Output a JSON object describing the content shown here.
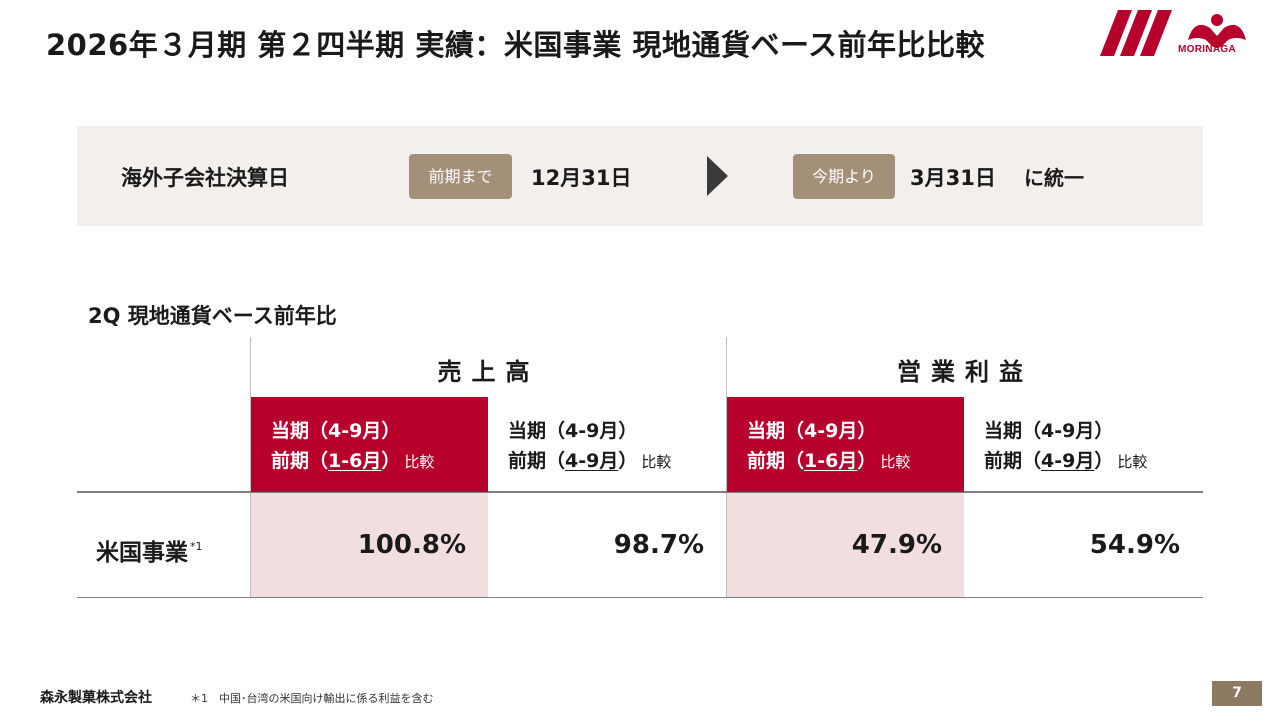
{
  "header": {
    "title": "2026年３月期 第２四半期 実績：米国事業 現地通貨ベース前年比比較"
  },
  "logo": {
    "text": "MORINAGA",
    "icon": "morinaga-angel-logo",
    "color": "#b8002c"
  },
  "banner": {
    "label": "海外子会社決算日",
    "prev_pill": "前期まで",
    "prev_date": "12月31日",
    "cur_pill": "今期より",
    "cur_date": "3月31日",
    "unify": "に統一",
    "arrow_icon": "arrow-right-icon"
  },
  "section": {
    "title": "2Q 現地通貨ベース前年比"
  },
  "table": {
    "groups": [
      "売上高",
      "営業利益"
    ],
    "columns": [
      {
        "line1": "当期（4-9月）",
        "line2_pre": "前期（",
        "line2_u": "1-6月",
        "line2_post": "）",
        "suffix": "比較"
      },
      {
        "line1": "当期（4-9月）",
        "line2_pre": "前期（",
        "line2_u": "4-9月",
        "line2_post": "）",
        "suffix": "比較"
      },
      {
        "line1": "当期（4-9月）",
        "line2_pre": "前期（",
        "line2_u": "1-6月",
        "line2_post": "）",
        "suffix": "比較"
      },
      {
        "line1": "当期（4-9月）",
        "line2_pre": "前期（",
        "line2_u": "4-9月",
        "line2_post": "）",
        "suffix": "比較"
      }
    ],
    "row": {
      "label": "米国事業",
      "note_mark": "*1",
      "values": [
        "100.8%",
        "98.7%",
        "47.9%",
        "54.9%"
      ]
    },
    "colors": {
      "accent": "#b8002c",
      "highlight": "#f2dedf"
    }
  },
  "footer": {
    "company": "森永製菓株式会社",
    "footnote": "＊1　中国･台湾の米国向け輸出に係る利益を含む",
    "page_number": "7"
  }
}
